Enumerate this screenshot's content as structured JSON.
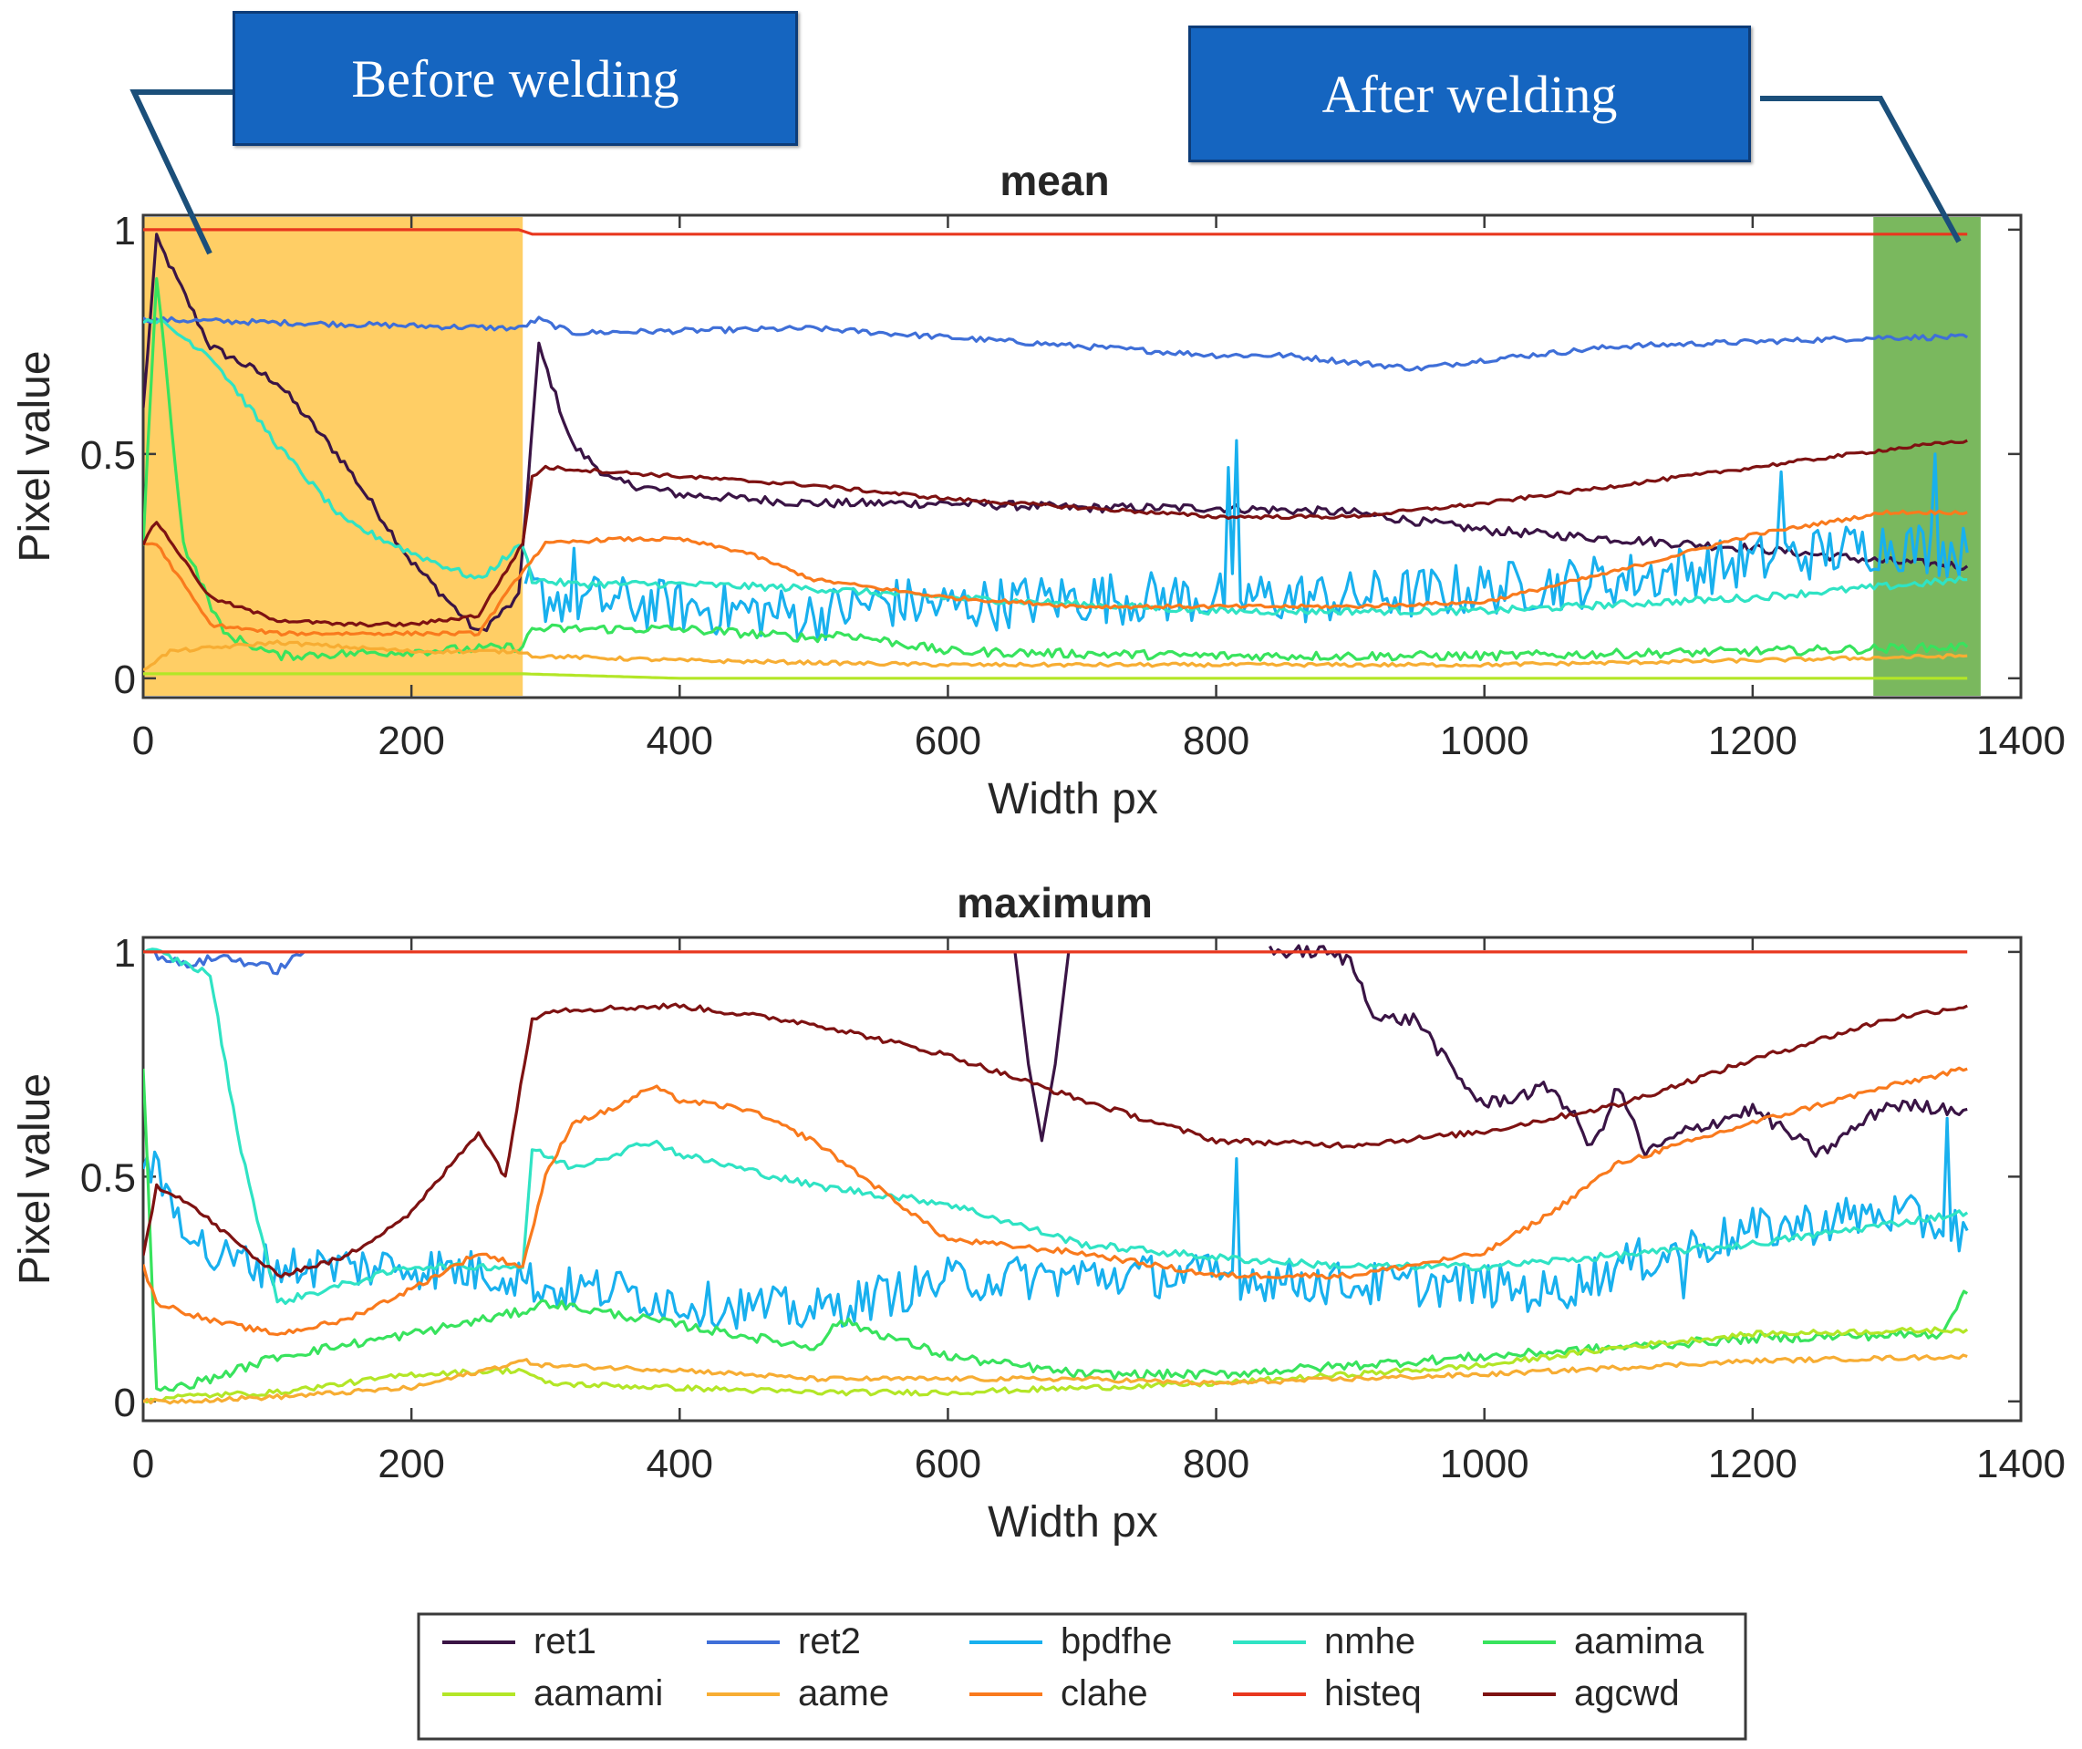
{
  "annotations": {
    "before": "Before welding",
    "after": "After welding"
  },
  "colors": {
    "ret1": "#3a1445",
    "ret2": "#3f6fd8",
    "bpdfhe": "#18b0ee",
    "nmhe": "#2fe3c4",
    "aamima": "#38e35d",
    "aamami": "#b3e627",
    "aame": "#f7ad33",
    "clahe": "#f97a1d",
    "histeq": "#e8371e",
    "agcwd": "#7e1212",
    "before_region": "#ffc54a",
    "after_region": "#6cb04c",
    "callout": "#1565c0",
    "callout_line": "#1b4f7a"
  },
  "legend": {
    "items": [
      "ret1",
      "ret2",
      "bpdfhe",
      "nmhe",
      "aamima",
      "aamami",
      "aame",
      "clahe",
      "histeq",
      "agcwd"
    ]
  },
  "chart_data": [
    {
      "type": "line",
      "title": "mean",
      "xlabel": "Width px",
      "ylabel": "Pixel value",
      "xlim": [
        0,
        1400
      ],
      "ylim": [
        0,
        1
      ],
      "xticks": [
        "0",
        "200",
        "400",
        "600",
        "800",
        "1000",
        "1200",
        "1400"
      ],
      "yticks": [
        "0",
        "0.5",
        "1"
      ],
      "shaded_regions": [
        {
          "label": "Before welding",
          "x0": 0,
          "x1": 283
        },
        {
          "label": "After welding",
          "x0": 1290,
          "x1": 1370
        }
      ],
      "series": [
        {
          "name": "ret1",
          "x": [
            0,
            10,
            50,
            100,
            150,
            200,
            250,
            280,
            295,
            320,
            350,
            400,
            500,
            600,
            700,
            800,
            900,
            1000,
            1100,
            1200,
            1300,
            1360
          ],
          "y": [
            0.6,
            0.98,
            0.74,
            0.66,
            0.48,
            0.26,
            0.1,
            0.18,
            0.74,
            0.52,
            0.44,
            0.41,
            0.39,
            0.39,
            0.38,
            0.38,
            0.37,
            0.33,
            0.31,
            0.29,
            0.26,
            0.25
          ],
          "noise": 0.01
        },
        {
          "name": "ret2",
          "x": [
            0,
            280,
            295,
            320,
            500,
            600,
            700,
            800,
            850,
            950,
            1000,
            1100,
            1200,
            1300,
            1360
          ],
          "y": [
            0.8,
            0.78,
            0.8,
            0.77,
            0.78,
            0.76,
            0.74,
            0.72,
            0.72,
            0.69,
            0.71,
            0.74,
            0.75,
            0.76,
            0.76
          ],
          "noise": 0.006
        },
        {
          "name": "bpdfhe",
          "x": [
            285,
            300,
            400,
            500,
            550,
            600,
            700,
            800,
            900,
            1000,
            1100,
            1200,
            1300,
            1360
          ],
          "y": [
            0.2,
            0.18,
            0.16,
            0.14,
            0.17,
            0.16,
            0.18,
            0.18,
            0.18,
            0.2,
            0.22,
            0.26,
            0.3,
            0.28
          ],
          "noise": 0.06,
          "spikes": [
            [
              320,
              0.29
            ],
            [
              814,
              0.53
            ],
            [
              808,
              0.47
            ],
            [
              1220,
              0.46
            ],
            [
              1335,
              0.5
            ]
          ]
        },
        {
          "name": "nmhe",
          "x": [
            0,
            10,
            50,
            100,
            150,
            200,
            250,
            283,
            290,
            320,
            400,
            500,
            600,
            800,
            1000,
            1200,
            1360
          ],
          "y": [
            0.8,
            0.8,
            0.72,
            0.52,
            0.35,
            0.28,
            0.22,
            0.3,
            0.22,
            0.21,
            0.21,
            0.2,
            0.18,
            0.15,
            0.15,
            0.18,
            0.22
          ],
          "noise": 0.008
        },
        {
          "name": "aamima",
          "x": [
            0,
            10,
            30,
            60,
            100,
            200,
            283,
            290,
            400,
            500,
            520,
            600,
            800,
            1000,
            1200,
            1360
          ],
          "y": [
            0.3,
            0.9,
            0.3,
            0.1,
            0.05,
            0.06,
            0.07,
            0.11,
            0.11,
            0.09,
            0.1,
            0.06,
            0.05,
            0.05,
            0.06,
            0.07
          ],
          "noise": 0.01
        },
        {
          "name": "aamami",
          "x": [
            0,
            20,
            100,
            200,
            283,
            400,
            600,
            800,
            1000,
            1200,
            1360
          ],
          "y": [
            0.01,
            0.01,
            0.01,
            0.01,
            0.01,
            0.0,
            0.0,
            0.0,
            0.0,
            0.0,
            0.0
          ],
          "noise": 0.0
        },
        {
          "name": "aame",
          "x": [
            0,
            20,
            100,
            200,
            283,
            290,
            400,
            600,
            800,
            1000,
            1200,
            1360
          ],
          "y": [
            0.02,
            0.06,
            0.08,
            0.06,
            0.06,
            0.05,
            0.04,
            0.03,
            0.03,
            0.03,
            0.04,
            0.05
          ],
          "noise": 0.004
        },
        {
          "name": "clahe",
          "x": [
            0,
            10,
            50,
            100,
            200,
            250,
            283,
            300,
            350,
            400,
            450,
            500,
            600,
            700,
            800,
            900,
            1000,
            1100,
            1200,
            1300,
            1360
          ],
          "y": [
            0.3,
            0.3,
            0.12,
            0.1,
            0.1,
            0.1,
            0.24,
            0.3,
            0.31,
            0.31,
            0.28,
            0.22,
            0.18,
            0.16,
            0.16,
            0.16,
            0.17,
            0.24,
            0.32,
            0.37,
            0.37
          ],
          "noise": 0.004
        },
        {
          "name": "histeq",
          "x": [
            0,
            280,
            290,
            400,
            600,
            800,
            1000,
            1200,
            1360
          ],
          "y": [
            1.0,
            1.0,
            0.99,
            0.99,
            0.99,
            0.99,
            0.99,
            0.99,
            0.99
          ],
          "noise": 0.0
        },
        {
          "name": "agcwd",
          "x": [
            0,
            10,
            50,
            100,
            150,
            200,
            250,
            283,
            290,
            300,
            400,
            500,
            600,
            700,
            800,
            900,
            1000,
            1100,
            1200,
            1300,
            1360
          ],
          "y": [
            0.3,
            0.35,
            0.18,
            0.13,
            0.12,
            0.12,
            0.14,
            0.3,
            0.45,
            0.47,
            0.45,
            0.43,
            0.4,
            0.38,
            0.36,
            0.36,
            0.39,
            0.43,
            0.47,
            0.51,
            0.53
          ],
          "noise": 0.004
        }
      ]
    },
    {
      "type": "line",
      "title": "maximum",
      "xlabel": "Width px",
      "ylabel": "Pixel value",
      "xlim": [
        0,
        1400
      ],
      "ylim": [
        0,
        1
      ],
      "xticks": [
        "0",
        "200",
        "400",
        "600",
        "800",
        "1000",
        "1200",
        "1400"
      ],
      "yticks": [
        "0",
        "0.5",
        "1"
      ],
      "series": [
        {
          "name": "ret1",
          "x": [
            650,
            660,
            670,
            680,
            690
          ],
          "y": [
            1.0,
            0.75,
            0.58,
            0.75,
            1.0
          ],
          "noise": 0.0,
          "extra": [
            {
              "x": [
                840,
                880,
                900,
                920,
                950,
                980,
                1000,
                1050,
                1070,
                1080,
                1100,
                1120,
                1150,
                1200,
                1250,
                1300,
                1360
              ],
              "y": [
                1.0,
                1.0,
                0.98,
                0.85,
                0.85,
                0.72,
                0.66,
                0.7,
                0.62,
                0.56,
                0.7,
                0.55,
                0.6,
                0.65,
                0.55,
                0.66,
                0.65
              ]
            }
          ]
        },
        {
          "name": "ret2",
          "x": [
            5,
            30,
            60,
            100,
            120
          ],
          "y": [
            1.0,
            0.97,
            0.99,
            0.96,
            1.0
          ],
          "noise": 0.01
        },
        {
          "name": "bpdfhe",
          "x": [
            0,
            20,
            50,
            100,
            200,
            280,
            300,
            350,
            400,
            500,
            600,
            700,
            800,
            900,
            1000,
            1050,
            1100,
            1200,
            1300,
            1360
          ],
          "y": [
            0.55,
            0.45,
            0.32,
            0.3,
            0.3,
            0.28,
            0.25,
            0.25,
            0.22,
            0.2,
            0.27,
            0.28,
            0.28,
            0.26,
            0.26,
            0.24,
            0.3,
            0.38,
            0.42,
            0.38
          ],
          "noise": 0.05,
          "spikes": [
            [
              815,
              0.54
            ],
            [
              1150,
              0.23
            ],
            [
              1345,
              0.63
            ]
          ]
        },
        {
          "name": "nmhe",
          "x": [
            0,
            10,
            50,
            70,
            100,
            200,
            283,
            290,
            320,
            380,
            400,
            500,
            600,
            700,
            800,
            900,
            1000,
            1200,
            1360
          ],
          "y": [
            1.0,
            1.0,
            0.95,
            0.6,
            0.22,
            0.3,
            0.3,
            0.56,
            0.52,
            0.58,
            0.55,
            0.48,
            0.44,
            0.35,
            0.32,
            0.3,
            0.3,
            0.35,
            0.42
          ],
          "noise": 0.008
        },
        {
          "name": "aamima",
          "x": [
            0,
            10,
            50,
            100,
            200,
            283,
            300,
            400,
            500,
            520,
            600,
            700,
            800,
            1000,
            1200,
            1340,
            1355,
            1360
          ],
          "y": [
            0.75,
            0.02,
            0.05,
            0.1,
            0.15,
            0.2,
            0.22,
            0.17,
            0.12,
            0.18,
            0.1,
            0.06,
            0.06,
            0.1,
            0.14,
            0.15,
            0.23,
            0.24
          ],
          "noise": 0.01
        },
        {
          "name": "aamami",
          "x": [
            0,
            20,
            100,
            200,
            283,
            300,
            400,
            500,
            600,
            700,
            800,
            1000,
            1100,
            1200,
            1360
          ],
          "y": [
            0.0,
            0.01,
            0.02,
            0.06,
            0.07,
            0.04,
            0.03,
            0.02,
            0.02,
            0.03,
            0.04,
            0.08,
            0.12,
            0.15,
            0.16
          ],
          "noise": 0.006
        },
        {
          "name": "aame",
          "x": [
            0,
            20,
            100,
            200,
            283,
            300,
            400,
            500,
            600,
            700,
            800,
            1000,
            1200,
            1360
          ],
          "y": [
            0.0,
            0.0,
            0.01,
            0.03,
            0.09,
            0.08,
            0.07,
            0.05,
            0.05,
            0.05,
            0.04,
            0.06,
            0.09,
            0.1
          ],
          "noise": 0.005
        },
        {
          "name": "clahe",
          "x": [
            0,
            10,
            50,
            100,
            150,
            200,
            250,
            283,
            300,
            320,
            350,
            380,
            400,
            450,
            500,
            600,
            700,
            800,
            900,
            1000,
            1050,
            1100,
            1200,
            1300,
            1360
          ],
          "y": [
            0.3,
            0.22,
            0.18,
            0.15,
            0.18,
            0.25,
            0.33,
            0.3,
            0.5,
            0.62,
            0.65,
            0.7,
            0.67,
            0.65,
            0.58,
            0.36,
            0.33,
            0.28,
            0.28,
            0.33,
            0.42,
            0.53,
            0.62,
            0.7,
            0.74
          ],
          "noise": 0.006
        },
        {
          "name": "histeq",
          "x": [
            0,
            200,
            400,
            600,
            800,
            1000,
            1200,
            1360
          ],
          "y": [
            1.0,
            1.0,
            1.0,
            1.0,
            1.0,
            1.0,
            1.0,
            1.0
          ],
          "noise": 0.0
        },
        {
          "name": "agcwd",
          "x": [
            0,
            10,
            30,
            100,
            150,
            200,
            250,
            270,
            290,
            300,
            400,
            500,
            600,
            700,
            800,
            900,
            1000,
            1100,
            1200,
            1300,
            1360
          ],
          "y": [
            0.32,
            0.48,
            0.45,
            0.28,
            0.32,
            0.42,
            0.6,
            0.5,
            0.85,
            0.87,
            0.88,
            0.84,
            0.77,
            0.67,
            0.58,
            0.57,
            0.6,
            0.66,
            0.76,
            0.85,
            0.88
          ],
          "noise": 0.006
        }
      ]
    }
  ]
}
